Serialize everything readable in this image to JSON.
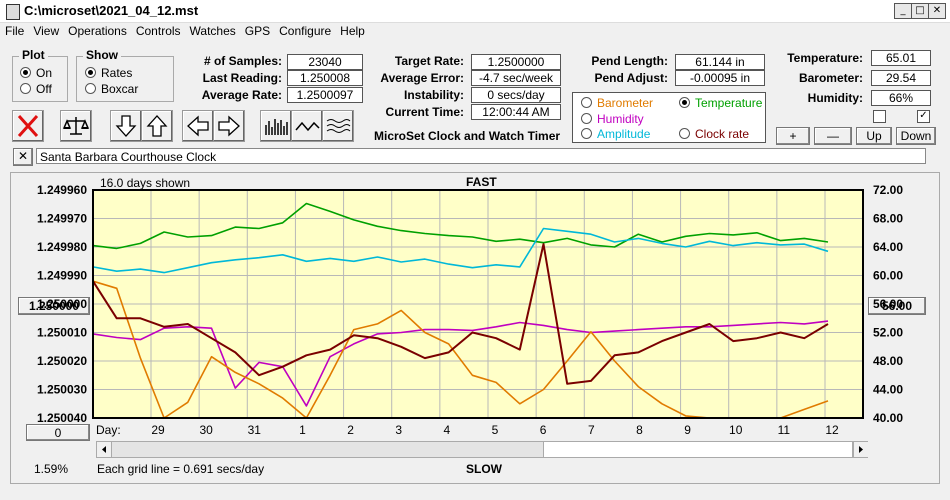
{
  "window": {
    "title": "C:\\microset\\2021_04_12.mst",
    "minimize_glyph": "_",
    "maximize_glyph": "□",
    "close_glyph": "✕"
  },
  "menu": [
    "File",
    "View",
    "Operations",
    "Controls",
    "Watches",
    "GPS",
    "Configure",
    "Help"
  ],
  "plot_group": {
    "title": "Plot",
    "on": "On",
    "off": "Off",
    "selected": "On"
  },
  "show_group": {
    "title": "Show",
    "rates": "Rates",
    "boxcar": "Boxcar",
    "selected": "Rates"
  },
  "stats": {
    "samples_label": "# of Samples:",
    "samples_value": "23040",
    "last_reading_label": "Last Reading:",
    "last_reading_value": "1.250008",
    "avg_rate_label": "Average Rate:",
    "avg_rate_value": "1.2500097",
    "target_rate_label": "Target Rate:",
    "target_rate_value": "1.2500000",
    "avg_error_label": "Average Error:",
    "avg_error_value": "-4.7 sec/week",
    "instability_label": "Instability:",
    "instability_value": "0 secs/day",
    "current_time_label": "Current Time:",
    "current_time_value": "12:00:44 AM",
    "pend_length_label": "Pend Length:",
    "pend_length_value": "61.144 in",
    "pend_adjust_label": "Pend Adjust:",
    "pend_adjust_value": "-0.00095 in",
    "temperature_label": "Temperature:",
    "temperature_value": "65.01",
    "barometer_label": "Barometer:",
    "barometer_value": "29.54",
    "humidity_label": "Humidity:",
    "humidity_value": "66%"
  },
  "app_caption": "MicroSet Clock and Watch Timer",
  "overlay_options": {
    "barometer": "Barometer",
    "temperature": "Temperature",
    "humidity": "Humidity",
    "amplitude": "Amplitude",
    "clock_rate": "Clock rate",
    "selected": "Temperature",
    "colors": {
      "barometer": "#e07b00",
      "temperature": "#00a000",
      "humidity": "#c000c0",
      "amplitude": "#00b8d8",
      "clock_rate": "#7a0000"
    }
  },
  "scale_buttons": {
    "plus": "+",
    "minus": "—",
    "up": "Up",
    "down": "Down"
  },
  "checkboxes": {
    "left_checked": false,
    "right_checked": true,
    "check_glyph": "✓"
  },
  "clock_name": "Santa Barbara Courthouse Clock",
  "close_small": "✕",
  "chart": {
    "days_shown": "16.0 days shown",
    "fast_label": "FAST",
    "slow_label": "SLOW",
    "day_axis_label": "Day:",
    "grid_caption": "Each grid line = 0.691 secs/day",
    "left_button": "1.250000",
    "right_button": "56.00",
    "bottom_button": "0",
    "percent": "1.59%"
  },
  "chart_data": {
    "type": "line",
    "left_axis_ticks": [
      "1.249960",
      "1.249970",
      "1.249980",
      "1.249990",
      "1.250000",
      "1.250010",
      "1.250020",
      "1.250030",
      "1.250040"
    ],
    "right_axis_ticks": [
      "72.00",
      "68.00",
      "64.00",
      "60.00",
      "56.00",
      "52.00",
      "48.00",
      "44.00",
      "40.00"
    ],
    "x_ticks": [
      "29",
      "30",
      "31",
      "1",
      "2",
      "3",
      "4",
      "5",
      "6",
      "7",
      "8",
      "9",
      "10",
      "11",
      "12"
    ],
    "series": [
      {
        "name": "Temperature",
        "color": "#00a000",
        "values": [
          64.2,
          63.8,
          64.5,
          66.1,
          65.4,
          65.6,
          66.8,
          66.6,
          67.4,
          70.1,
          69.0,
          67.8,
          66.9,
          66.3,
          65.9,
          65.6,
          65.4,
          64.8,
          65.1,
          64.6,
          65.2,
          64.3,
          64.0,
          65.8,
          64.7,
          65.5,
          65.9,
          65.7,
          66.0,
          64.9,
          65.2,
          64.7
        ]
      },
      {
        "name": "Amplitude",
        "color": "#00b8d8",
        "values": [
          61.2,
          60.6,
          60.9,
          60.4,
          61.1,
          61.8,
          62.2,
          62.5,
          62.9,
          62.0,
          62.4,
          62.0,
          62.6,
          61.9,
          62.3,
          61.6,
          61.1,
          61.5,
          61.2,
          66.6,
          66.2,
          65.8,
          64.7,
          65.2,
          64.5,
          64.0,
          64.8,
          64.2,
          64.6,
          64.3,
          64.4,
          63.4
        ]
      },
      {
        "name": "Humidity",
        "color": "#c000c0",
        "values": [
          51.8,
          51.3,
          51.0,
          52.6,
          52.8,
          52.6,
          44.2,
          47.8,
          47.2,
          41.7,
          48.6,
          50.4,
          51.8,
          52.0,
          52.4,
          52.4,
          52.3,
          52.8,
          53.4,
          53.0,
          52.4,
          52.0,
          52.2,
          52.4,
          52.6,
          52.8,
          52.8,
          53.0,
          53.2,
          53.4,
          53.2,
          53.6
        ]
      },
      {
        "name": "Barometer",
        "color": "#e07b00",
        "values": [
          59.2,
          58.2,
          48.4,
          40.0,
          42.2,
          48.6,
          46.4,
          44.8,
          42.8,
          40.0,
          46.0,
          52.4,
          53.2,
          55.1,
          52.0,
          50.4,
          46.0,
          45.0,
          42.0,
          44.0,
          48.0,
          52.1,
          48.0,
          44.4,
          42.0,
          40.3,
          40.0,
          40.0,
          40.0,
          40.0,
          41.2,
          42.4
        ]
      },
      {
        "name": "Clock rate",
        "color": "#7a0000",
        "values": [
          1.249992,
          1.250005,
          1.250005,
          1.250008,
          1.250007,
          1.250012,
          1.250017,
          1.250025,
          1.250022,
          1.250018,
          1.250016,
          1.250011,
          1.250012,
          1.250015,
          1.250019,
          1.250017,
          1.25001,
          1.250012,
          1.250016,
          1.249979,
          1.250028,
          1.250027,
          1.250018,
          1.250017,
          1.250013,
          1.25001,
          1.250007,
          1.250013,
          1.250012,
          1.25001,
          1.250012,
          1.250007
        ]
      }
    ]
  }
}
